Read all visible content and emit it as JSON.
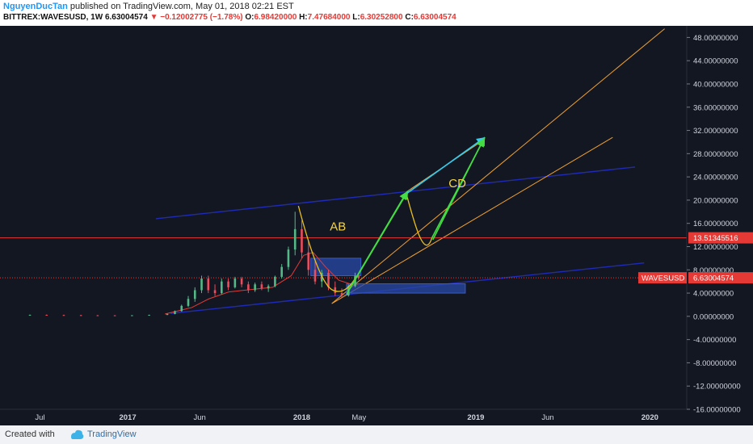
{
  "header": {
    "author": "NguyenDucTan",
    "published_text": "published on TradingView.com, May 01, 2018 02:21 EST",
    "symbol": "BITTREX:WAVESUSD, 1W",
    "last": "6.63004574",
    "down_arrow": "▼",
    "change": "−0.12002775 (−1.78%)",
    "o_label": "O:",
    "o_value": "6.98420000",
    "h_label": "H:",
    "h_value": "7.47684000",
    "l_label": "L:",
    "l_value": "6.30252800",
    "c_label": "C:",
    "c_value": "6.63004574"
  },
  "footer": {
    "created": "Created with",
    "brand": "TradingView"
  },
  "colors": {
    "background": "#131722",
    "channel": "#1f2bb8",
    "orange": "#f0a030",
    "green": "#44dd44",
    "cyan": "#33ccee",
    "red_level": "#e53935",
    "box": "#2a4aa8",
    "axis_text": "#d1d4dc"
  },
  "chart_data": {
    "type": "candlestick",
    "symbol": "WAVESUSD",
    "interval": "1W",
    "ylim": [
      -16,
      50
    ],
    "y_ticks": [
      {
        "value": 48,
        "label": "48.00000000"
      },
      {
        "value": 44,
        "label": "44.00000000"
      },
      {
        "value": 40,
        "label": "40.00000000"
      },
      {
        "value": 36,
        "label": "36.00000000"
      },
      {
        "value": 32,
        "label": "32.00000000"
      },
      {
        "value": 28,
        "label": "28.00000000"
      },
      {
        "value": 24,
        "label": "24.00000000"
      },
      {
        "value": 20,
        "label": "20.00000000"
      },
      {
        "value": 16,
        "label": "16.00000000"
      },
      {
        "value": 12,
        "label": "12.00000000"
      },
      {
        "value": 8,
        "label": "8.00000000"
      },
      {
        "value": 4,
        "label": "4.00000000"
      },
      {
        "value": 0,
        "label": "0.00000000"
      },
      {
        "value": -4,
        "label": "-4.00000000"
      },
      {
        "value": -8,
        "label": "-8.00000000"
      },
      {
        "value": -12,
        "label": "-12.00000000"
      },
      {
        "value": -16,
        "label": "-16.00000000"
      }
    ],
    "x_ticks": [
      {
        "date": "2016-07-01",
        "label": "Jul"
      },
      {
        "date": "2017-01-01",
        "label": "2017"
      },
      {
        "date": "2017-06-01",
        "label": "Jun"
      },
      {
        "date": "2018-01-01",
        "label": "2018"
      },
      {
        "date": "2018-05-01",
        "label": "May"
      },
      {
        "date": "2019-01-01",
        "label": "2019"
      },
      {
        "date": "2019-06-01",
        "label": "Jun"
      },
      {
        "date": "2020-01-01",
        "label": "2020"
      }
    ],
    "x_range": [
      "2016-04-15",
      "2020-03-15"
    ],
    "candles": [
      {
        "date": "2016-06-10",
        "o": 0.2,
        "h": 0.3,
        "l": 0.15,
        "c": 0.25
      },
      {
        "date": "2016-07-15",
        "o": 0.25,
        "h": 0.3,
        "l": 0.2,
        "c": 0.22
      },
      {
        "date": "2016-08-20",
        "o": 0.22,
        "h": 0.28,
        "l": 0.18,
        "c": 0.2
      },
      {
        "date": "2016-09-25",
        "o": 0.2,
        "h": 0.25,
        "l": 0.15,
        "c": 0.18
      },
      {
        "date": "2016-10-30",
        "o": 0.18,
        "h": 0.22,
        "l": 0.14,
        "c": 0.17
      },
      {
        "date": "2016-12-05",
        "o": 0.17,
        "h": 0.2,
        "l": 0.13,
        "c": 0.16
      },
      {
        "date": "2017-01-10",
        "o": 0.16,
        "h": 0.2,
        "l": 0.12,
        "c": 0.18
      },
      {
        "date": "2017-02-15",
        "o": 0.18,
        "h": 0.28,
        "l": 0.15,
        "c": 0.25
      },
      {
        "date": "2017-03-25",
        "o": 0.25,
        "h": 0.5,
        "l": 0.2,
        "c": 0.4
      },
      {
        "date": "2017-04-10",
        "o": 0.4,
        "h": 1.0,
        "l": 0.35,
        "c": 0.9
      },
      {
        "date": "2017-04-24",
        "o": 0.9,
        "h": 2.0,
        "l": 0.8,
        "c": 1.8
      },
      {
        "date": "2017-05-08",
        "o": 1.8,
        "h": 3.5,
        "l": 1.6,
        "c": 3.0
      },
      {
        "date": "2017-05-22",
        "o": 3.0,
        "h": 5.0,
        "l": 2.5,
        "c": 4.5
      },
      {
        "date": "2017-06-05",
        "o": 4.5,
        "h": 7.0,
        "l": 4.0,
        "c": 6.5
      },
      {
        "date": "2017-06-19",
        "o": 6.5,
        "h": 7.0,
        "l": 4.0,
        "c": 4.5
      },
      {
        "date": "2017-07-03",
        "o": 4.5,
        "h": 5.5,
        "l": 3.5,
        "c": 4.0
      },
      {
        "date": "2017-07-17",
        "o": 4.0,
        "h": 6.5,
        "l": 3.8,
        "c": 6.0
      },
      {
        "date": "2017-07-31",
        "o": 6.0,
        "h": 6.5,
        "l": 4.5,
        "c": 5.0
      },
      {
        "date": "2017-08-14",
        "o": 5.0,
        "h": 6.8,
        "l": 4.8,
        "c": 6.5
      },
      {
        "date": "2017-08-28",
        "o": 6.5,
        "h": 6.8,
        "l": 5.0,
        "c": 5.5
      },
      {
        "date": "2017-09-11",
        "o": 5.5,
        "h": 6.0,
        "l": 4.0,
        "c": 4.5
      },
      {
        "date": "2017-09-25",
        "o": 4.5,
        "h": 5.8,
        "l": 4.2,
        "c": 5.5
      },
      {
        "date": "2017-10-09",
        "o": 5.5,
        "h": 6.0,
        "l": 4.5,
        "c": 4.8
      },
      {
        "date": "2017-10-23",
        "o": 4.8,
        "h": 5.5,
        "l": 4.2,
        "c": 5.2
      },
      {
        "date": "2017-11-06",
        "o": 5.2,
        "h": 7.0,
        "l": 5.0,
        "c": 6.8
      },
      {
        "date": "2017-11-20",
        "o": 6.8,
        "h": 9.0,
        "l": 6.5,
        "c": 8.5
      },
      {
        "date": "2017-12-04",
        "o": 8.5,
        "h": 12.0,
        "l": 8.0,
        "c": 11.5
      },
      {
        "date": "2017-12-18",
        "o": 11.5,
        "h": 18.0,
        "l": 10.5,
        "c": 15.0
      },
      {
        "date": "2018-01-01",
        "o": 15.0,
        "h": 16.5,
        "l": 10.0,
        "c": 11.0
      },
      {
        "date": "2018-01-15",
        "o": 11.0,
        "h": 13.0,
        "l": 7.0,
        "c": 8.0
      },
      {
        "date": "2018-01-29",
        "o": 8.0,
        "h": 9.5,
        "l": 5.5,
        "c": 6.0
      },
      {
        "date": "2018-02-12",
        "o": 6.0,
        "h": 8.0,
        "l": 5.0,
        "c": 7.5
      },
      {
        "date": "2018-02-26",
        "o": 7.5,
        "h": 8.0,
        "l": 4.5,
        "c": 5.0
      },
      {
        "date": "2018-03-12",
        "o": 5.0,
        "h": 6.0,
        "l": 3.5,
        "c": 4.0
      },
      {
        "date": "2018-03-26",
        "o": 4.0,
        "h": 4.8,
        "l": 3.2,
        "c": 3.6
      },
      {
        "date": "2018-04-09",
        "o": 3.6,
        "h": 5.5,
        "l": 3.4,
        "c": 5.2
      },
      {
        "date": "2018-04-23",
        "o": 5.2,
        "h": 7.5,
        "l": 5.0,
        "c": 6.98
      },
      {
        "date": "2018-04-30",
        "o": 6.98,
        "h": 7.48,
        "l": 6.3,
        "c": 6.63
      }
    ],
    "price_lines": [
      {
        "value": 13.51345516,
        "label": "13.51345516",
        "style": "solid",
        "color": "#e53935"
      },
      {
        "value": 6.63004574,
        "label": "6.63004574",
        "name": "WAVESUSD",
        "style": "dotted",
        "color": "#e53935"
      }
    ],
    "annotations": [
      {
        "text": "AB",
        "date": "2018-03-01",
        "value": 14.8
      },
      {
        "text": "CD",
        "date": "2018-11-05",
        "value": 22.2
      }
    ]
  }
}
